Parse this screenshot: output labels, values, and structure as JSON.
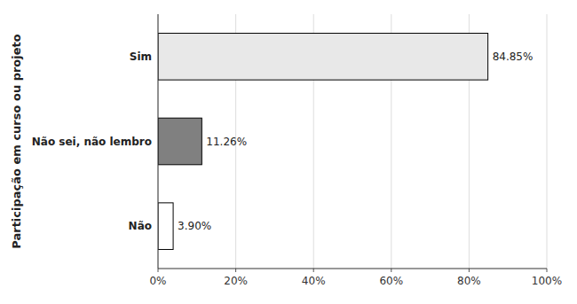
{
  "chart_data": {
    "type": "bar",
    "orientation": "horizontal",
    "categories": [
      "Sim",
      "Não sei, não lembro",
      "Não"
    ],
    "values": [
      84.85,
      11.26,
      3.9
    ],
    "value_labels": [
      "84.85%",
      "11.26%",
      "3.90%"
    ],
    "data_labels": true,
    "colors": [
      "#e8e8e8",
      "#808080",
      "#ffffff"
    ],
    "ylabel": "Participação em curso ou projeto",
    "xlim": [
      0,
      100
    ],
    "xticks": [
      {
        "value": 0,
        "label": "0%"
      },
      {
        "value": 20,
        "label": "20%"
      },
      {
        "value": 40,
        "label": "40%"
      },
      {
        "value": 60,
        "label": "60%"
      },
      {
        "value": 80,
        "label": "80%"
      },
      {
        "value": 100,
        "label": "100%"
      }
    ],
    "grid": true
  }
}
